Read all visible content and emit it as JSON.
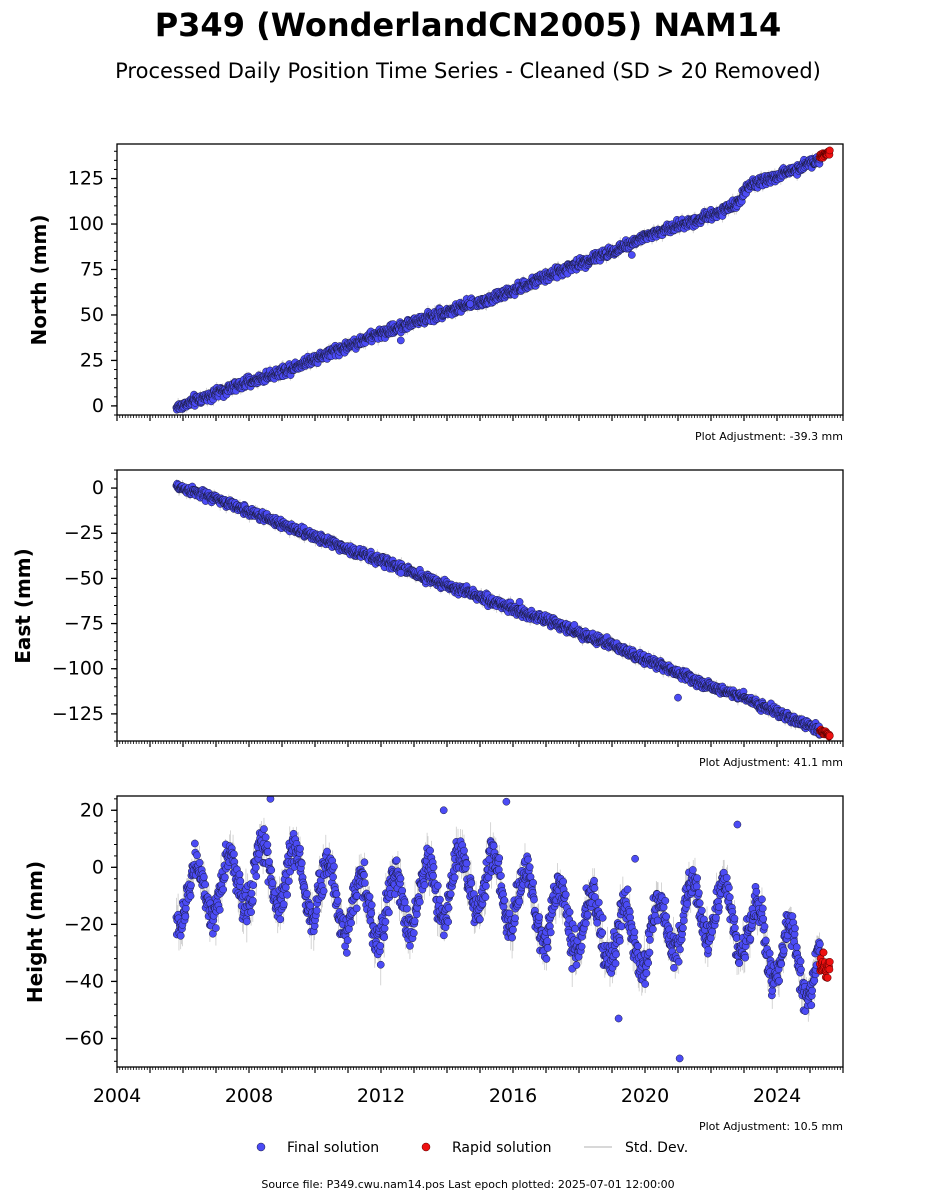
{
  "figure": {
    "title": "P349 (WonderlandCN2005) NAM14",
    "subtitle": "Processed Daily Position Time Series - Cleaned (SD > 20 Removed)",
    "source_note": "Source file: P349.cwu.nam14.pos  Last epoch plotted: 2025-07-01 12:00:00"
  },
  "legend": {
    "items": [
      {
        "label": "Final solution",
        "color": "#4b4bf5",
        "marker": "circle"
      },
      {
        "label": "Rapid solution",
        "color": "#ee1111",
        "marker": "circle"
      },
      {
        "label": "Std. Dev.",
        "color": "#cccccc",
        "marker": "line"
      }
    ]
  },
  "colors": {
    "final": "#4b4bf5",
    "final_edge": "#1a1a3a",
    "rapid": "#ee1111",
    "stddev": "#a0a0a0"
  },
  "chart_data": [
    {
      "type": "scatter",
      "ylabel": "North (mm)",
      "adjustment": "Plot Adjustment: -39.3 mm",
      "xlim": [
        2004.0,
        2026.0
      ],
      "ylim": [
        -5,
        144
      ],
      "yticks": [
        0,
        25,
        50,
        75,
        100,
        125
      ],
      "ytick_labels": [
        "0",
        "25",
        "50",
        "75",
        "100",
        "125"
      ],
      "grid": false,
      "final_trend": [
        [
          2005.8,
          -1
        ],
        [
          2007.0,
          7
        ],
        [
          2008.0,
          13
        ],
        [
          2009.0,
          19
        ],
        [
          2010.0,
          26
        ],
        [
          2011.0,
          33
        ],
        [
          2012.0,
          40
        ],
        [
          2013.0,
          46
        ],
        [
          2014.0,
          52
        ],
        [
          2015.0,
          57
        ],
        [
          2016.0,
          63
        ],
        [
          2017.0,
          71
        ],
        [
          2018.0,
          78
        ],
        [
          2019.0,
          85
        ],
        [
          2020.0,
          93
        ],
        [
          2021.0,
          99
        ],
        [
          2022.0,
          105
        ],
        [
          2022.8,
          111
        ],
        [
          2023.1,
          121
        ],
        [
          2024.0,
          126
        ],
        [
          2025.3,
          136
        ]
      ],
      "final_scatter": 2.0,
      "final_outliers": [
        [
          2012.6,
          36
        ],
        [
          2019.6,
          83
        ],
        [
          2014.7,
          56
        ]
      ],
      "rapid_trend": [
        [
          2025.3,
          137
        ],
        [
          2025.6,
          140
        ]
      ],
      "rapid_scatter": 1.2,
      "stddev_half": 2.5
    },
    {
      "type": "scatter",
      "ylabel": "East (mm)",
      "adjustment": "Plot Adjustment: 41.1 mm",
      "xlim": [
        2004.0,
        2026.0
      ],
      "ylim": [
        -140,
        10
      ],
      "yticks": [
        0,
        -25,
        -50,
        -75,
        -100,
        -125
      ],
      "ytick_labels": [
        "0",
        "−25",
        "−50",
        "−75",
        "−100",
        "−125"
      ],
      "grid": false,
      "final_trend": [
        [
          2005.8,
          1
        ],
        [
          2007.0,
          -6
        ],
        [
          2008.0,
          -13
        ],
        [
          2009.0,
          -20
        ],
        [
          2010.0,
          -27
        ],
        [
          2011.0,
          -34
        ],
        [
          2012.0,
          -40
        ],
        [
          2013.0,
          -47
        ],
        [
          2014.0,
          -54
        ],
        [
          2015.0,
          -60
        ],
        [
          2016.0,
          -67
        ],
        [
          2017.0,
          -73
        ],
        [
          2018.0,
          -80
        ],
        [
          2019.0,
          -87
        ],
        [
          2020.0,
          -95
        ],
        [
          2021.0,
          -102
        ],
        [
          2022.0,
          -110
        ],
        [
          2023.0,
          -116
        ],
        [
          2024.0,
          -124
        ],
        [
          2025.3,
          -134
        ]
      ],
      "final_scatter": 1.8,
      "final_outliers": [
        [
          2016.2,
          -63
        ],
        [
          2021.0,
          -116
        ],
        [
          2012.6,
          -47
        ]
      ],
      "rapid_trend": [
        [
          2025.3,
          -134
        ],
        [
          2025.6,
          -137
        ]
      ],
      "rapid_scatter": 1.0,
      "stddev_half": 2.5
    },
    {
      "type": "scatter",
      "ylabel": "Height (mm)",
      "adjustment": "Plot Adjustment: 10.5 mm",
      "xlim": [
        2004.0,
        2026.0
      ],
      "ylim": [
        -70,
        25
      ],
      "xticks": [
        2004,
        2008,
        2012,
        2016,
        2020,
        2024
      ],
      "xtick_labels": [
        "2004",
        "2008",
        "2012",
        "2016",
        "2020",
        "2024"
      ],
      "yticks": [
        20,
        0,
        -20,
        -40,
        -60
      ],
      "ytick_labels": [
        "20",
        "0",
        "−20",
        "−40",
        "−60"
      ],
      "grid": false,
      "final_trend": [
        [
          2005.8,
          -10
        ],
        [
          2007.0,
          -8
        ],
        [
          2008.0,
          -3
        ],
        [
          2009.0,
          -2
        ],
        [
          2010.0,
          -7
        ],
        [
          2011.0,
          -12
        ],
        [
          2012.0,
          -16
        ],
        [
          2013.0,
          -11
        ],
        [
          2014.0,
          -6
        ],
        [
          2015.0,
          -4
        ],
        [
          2016.0,
          -10
        ],
        [
          2017.0,
          -17
        ],
        [
          2018.0,
          -19
        ],
        [
          2019.0,
          -23
        ],
        [
          2020.0,
          -26
        ],
        [
          2021.0,
          -18
        ],
        [
          2022.0,
          -14
        ],
        [
          2023.0,
          -20
        ],
        [
          2024.0,
          -30
        ],
        [
          2025.3,
          -36
        ]
      ],
      "final_seasonal_amp": 11,
      "final_scatter": 4.5,
      "final_outliers": [
        [
          2008.65,
          24
        ],
        [
          2013.9,
          20
        ],
        [
          2015.8,
          23
        ],
        [
          2021.05,
          -67
        ],
        [
          2019.2,
          -53
        ],
        [
          2022.8,
          15
        ],
        [
          2019.7,
          3
        ]
      ],
      "rapid_trend": [
        [
          2025.3,
          -34
        ],
        [
          2025.6,
          -35
        ]
      ],
      "rapid_scatter": 3.5,
      "stddev_half": 5
    }
  ]
}
